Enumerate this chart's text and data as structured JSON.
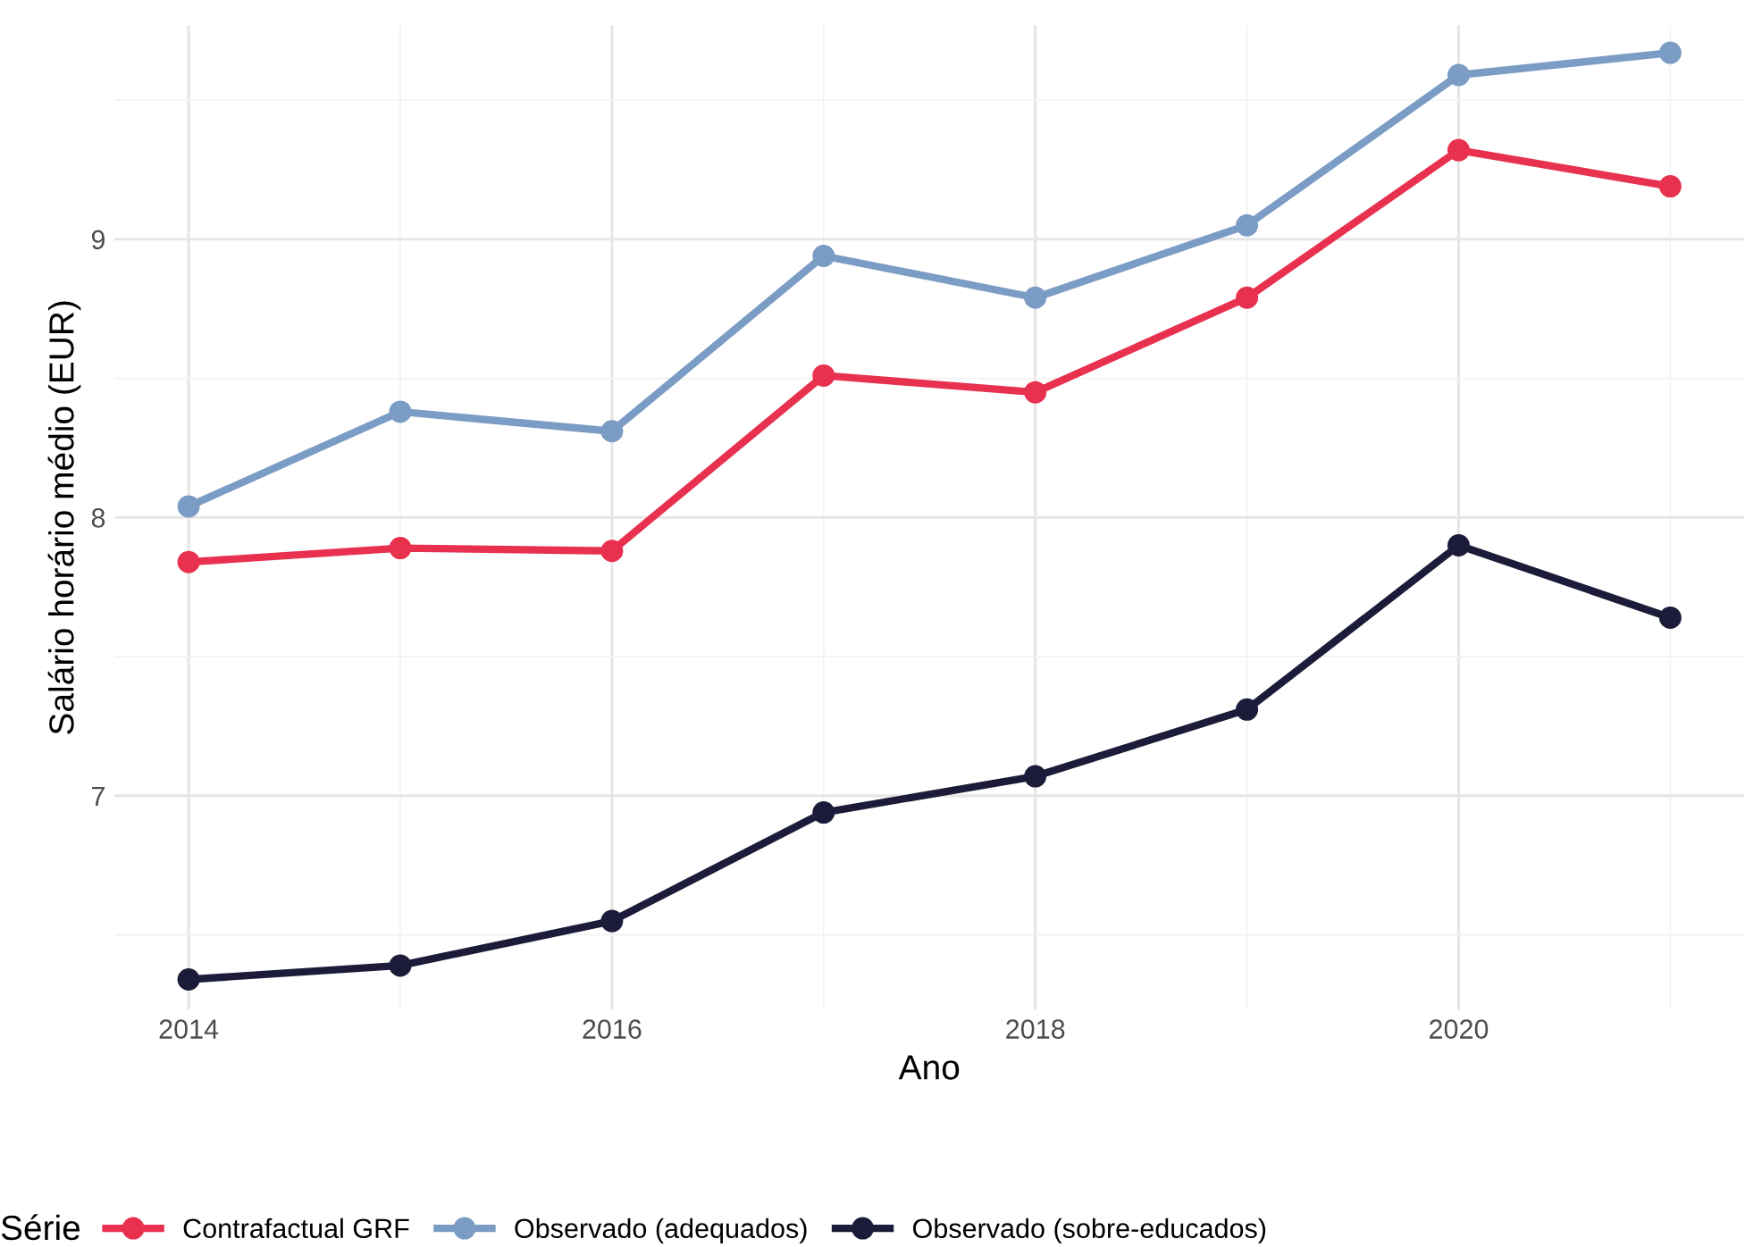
{
  "chart_data": {
    "type": "line",
    "xlabel": "Ano",
    "ylabel": "Salário horário médio (EUR)",
    "legend_title": "Série",
    "legend": "bottom",
    "grid": true,
    "marker": "circle",
    "line_style": "solid",
    "x": [
      2014,
      2015,
      2016,
      2017,
      2018,
      2019,
      2020,
      2021
    ],
    "xlim": [
      2013.65,
      2021.35
    ],
    "xticks": [
      2014,
      2016,
      2018,
      2020
    ],
    "ylim": [
      6.23,
      9.77
    ],
    "yticks": [
      7,
      8,
      9
    ],
    "series": [
      {
        "name": "Contrafactual GRF",
        "color": "#e8314f",
        "values": [
          7.84,
          7.89,
          7.88,
          8.51,
          8.45,
          8.79,
          9.32,
          9.19
        ]
      },
      {
        "name": "Observado (adequados)",
        "color": "#7b9cc4",
        "values": [
          8.04,
          8.38,
          8.31,
          8.94,
          8.79,
          9.05,
          9.59,
          9.67
        ]
      },
      {
        "name": "Observado (sobre-educados)",
        "color": "#1c1c3a",
        "values": [
          6.34,
          6.39,
          6.55,
          6.94,
          7.07,
          7.31,
          7.9,
          7.64
        ]
      }
    ]
  }
}
